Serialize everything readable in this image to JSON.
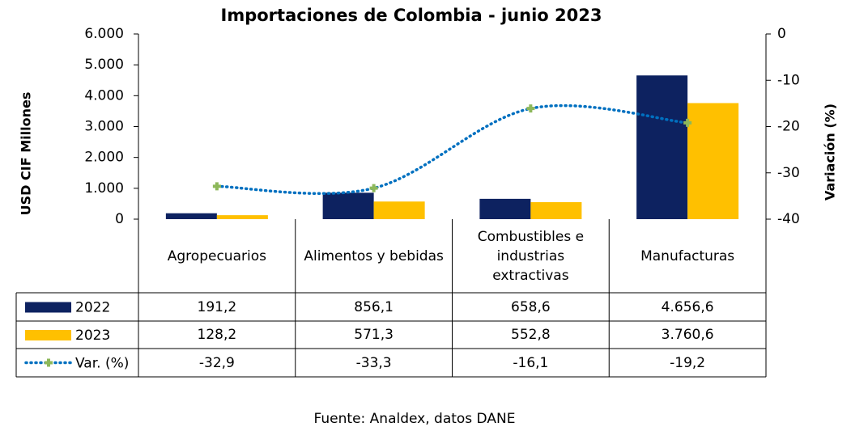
{
  "chart_data": {
    "type": "bar",
    "title": "Importaciones de Colombia - junio 2023",
    "ylabel": "USD CIF Millones",
    "y2label": "Variación (%)",
    "categories": [
      "Agropecuarios",
      "Alimentos y bebidas",
      "Combustibles e industrias extractivas",
      "Manufacturas"
    ],
    "series": [
      {
        "name": "2022",
        "type": "bar",
        "color": "#0d2260",
        "values": [
          191.2,
          856.1,
          658.6,
          4656.6
        ],
        "value_labels": [
          "191,2",
          "856,1",
          "658,6",
          "4.656,6"
        ]
      },
      {
        "name": "2023",
        "type": "bar",
        "color": "#ffc000",
        "values": [
          128.2,
          571.3,
          552.8,
          3760.6
        ],
        "value_labels": [
          "128,2",
          "571,3",
          "552,8",
          "3.760,6"
        ]
      },
      {
        "name": "Var. (%)",
        "type": "line",
        "axis": "y2",
        "color": "#0070c0",
        "marker_color": "#8db85a",
        "values": [
          -32.9,
          -33.3,
          -16.1,
          -19.2
        ],
        "value_labels": [
          "-32,9",
          "-33,3",
          "-16,1",
          "-19,2"
        ]
      }
    ],
    "ylim": [
      0,
      6000
    ],
    "yticks": [
      0,
      {
        "value": 1000,
        "label": "1.000"
      },
      {
        "value": 2000,
        "label": "2.000"
      },
      {
        "value": 3000,
        "label": "3.000"
      },
      {
        "value": 4000,
        "label": "4.000"
      },
      {
        "value": 5000,
        "label": "5.000"
      },
      {
        "value": 6000,
        "label": "6.000"
      }
    ],
    "y2lim": [
      -40,
      0
    ],
    "y2ticks": [
      -40,
      -30,
      -20,
      -10,
      0
    ],
    "source": "Fuente: Analdex, datos DANE"
  }
}
